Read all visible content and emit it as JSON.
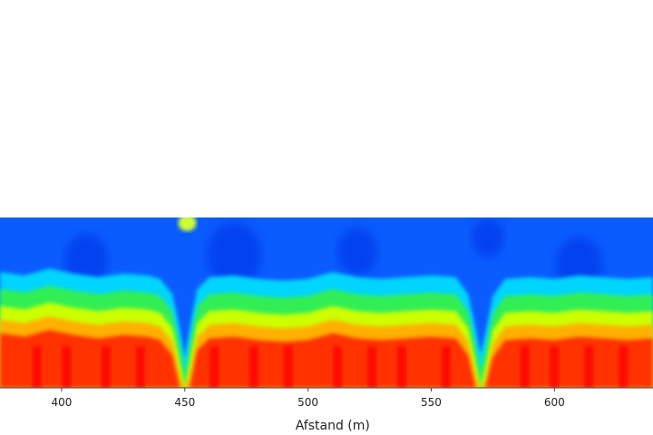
{
  "chart_data": {
    "type": "heatmap",
    "title": "",
    "xlabel": "Afstand (m)",
    "ylabel": "",
    "xlim": [
      375,
      640
    ],
    "x_ticks": [
      400,
      450,
      500,
      550,
      600
    ],
    "x_tick_labels": [
      "400",
      "450",
      "500",
      "550",
      "600"
    ],
    "colormap": [
      "#0000cc",
      "#0044ff",
      "#00ccff",
      "#33ff66",
      "#ccff00",
      "#ffcc00",
      "#ff4400",
      "#ff0000"
    ],
    "profile_x": [
      375,
      385,
      395,
      405,
      415,
      425,
      435,
      440,
      445,
      448,
      450,
      452,
      455,
      460,
      470,
      480,
      490,
      500,
      505,
      510,
      520,
      530,
      540,
      550,
      560,
      565,
      568,
      570,
      572,
      575,
      580,
      590,
      600,
      610,
      620,
      630,
      640
    ],
    "profile_top_depth": [
      0.42,
      0.44,
      0.4,
      0.43,
      0.45,
      0.43,
      0.44,
      0.46,
      0.55,
      0.75,
      0.92,
      0.75,
      0.52,
      0.45,
      0.44,
      0.46,
      0.47,
      0.46,
      0.44,
      0.42,
      0.45,
      0.46,
      0.45,
      0.44,
      0.45,
      0.55,
      0.75,
      0.9,
      0.78,
      0.56,
      0.46,
      0.45,
      0.46,
      0.44,
      0.45,
      0.46,
      0.45
    ]
  }
}
